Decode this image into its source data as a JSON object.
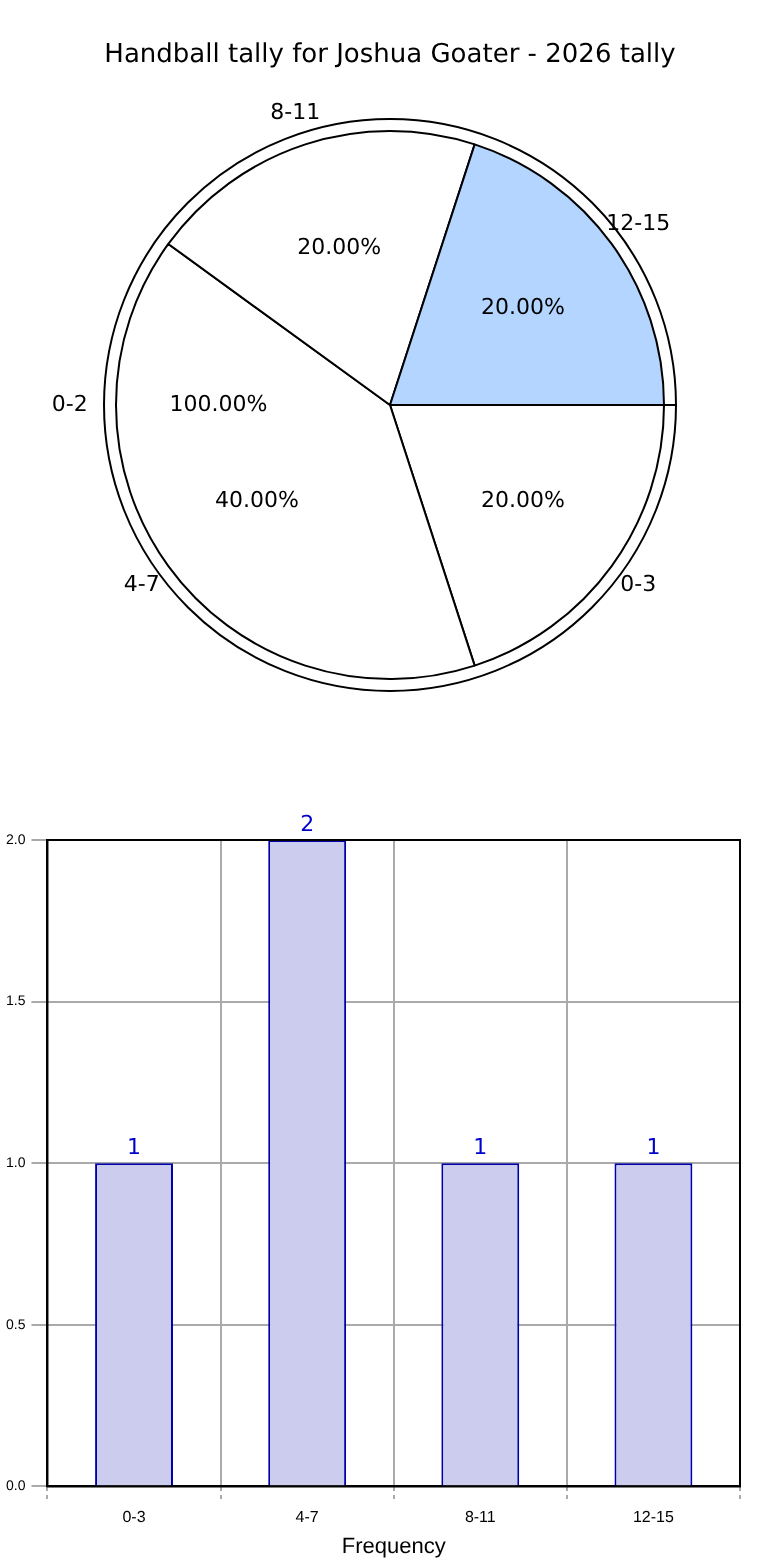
{
  "chart_data": [
    {
      "type": "pie",
      "title": "Handball tally for Joshua Goater - 2026 tally",
      "categories": [
        "0-3",
        "4-7",
        "8-11",
        "12-15"
      ],
      "values": [
        20,
        40,
        20,
        20
      ],
      "colors": [
        "#ffffff",
        "#ffffff",
        "#ffffff",
        "#b3d5ff"
      ],
      "value_labels": [
        "20.00%",
        "40.00%",
        "20.00%",
        "20.00%"
      ]
    },
    {
      "type": "pie",
      "categories": [
        "0-2"
      ],
      "values": [
        100
      ],
      "colors": [
        "#ffffff"
      ],
      "value_labels": [
        "100.00%"
      ]
    },
    {
      "type": "bar",
      "categories": [
        "0-3",
        "4-7",
        "8-11",
        "12-15"
      ],
      "values": [
        1,
        2,
        1,
        1
      ],
      "color": "#ccccee",
      "xlabel": "Frequency",
      "ylim": [
        0,
        2
      ],
      "yticks": [
        {
          "value": 0,
          "label": "0.0"
        },
        {
          "value": 0.5,
          "label": "0.5"
        },
        {
          "value": 1,
          "label": "1.0"
        },
        {
          "value": 1.5,
          "label": "1.5"
        },
        {
          "value": 2,
          "label": "2.0"
        }
      ],
      "grid": true,
      "data_labels": true
    }
  ]
}
